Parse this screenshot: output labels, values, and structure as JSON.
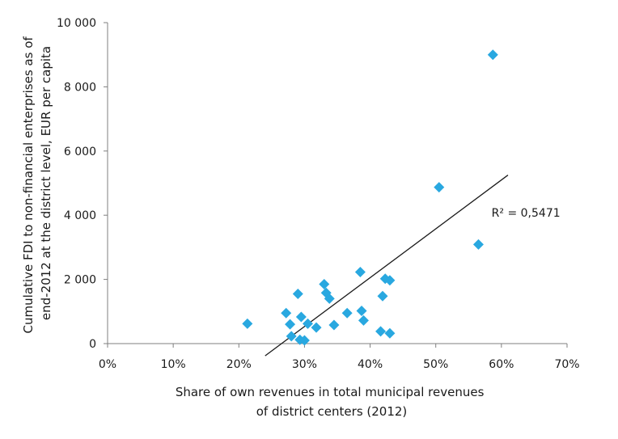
{
  "chart_data": {
    "type": "scatter",
    "xlabel_lines": [
      "Share of own revenues in total municipal revenues",
      "of district centers (2012)"
    ],
    "ylabel_lines": [
      "Cumulative FDI to non-financial enterprises as of",
      "end-2012 at the district level, EUR per capita"
    ],
    "xlim": [
      0,
      70
    ],
    "ylim": [
      0,
      10000
    ],
    "x_ticks": [
      0,
      10,
      20,
      30,
      40,
      50,
      60,
      70
    ],
    "x_tick_labels": [
      "0%",
      "10%",
      "20%",
      "30%",
      "40%",
      "50%",
      "60%",
      "70%"
    ],
    "y_ticks": [
      0,
      2000,
      4000,
      6000,
      8000,
      10000
    ],
    "y_tick_labels": [
      "0",
      "2 000",
      "4 000",
      "6 000",
      "8 000",
      "10 000"
    ],
    "grid": false,
    "marker": "diamond",
    "marker_color": "#29a8e0",
    "trendline_color": "#1a1a1a",
    "points": [
      {
        "x": 21.3,
        "y": 620
      },
      {
        "x": 27.2,
        "y": 950
      },
      {
        "x": 27.8,
        "y": 600
      },
      {
        "x": 28.0,
        "y": 230
      },
      {
        "x": 29.0,
        "y": 1550
      },
      {
        "x": 29.3,
        "y": 120
      },
      {
        "x": 29.5,
        "y": 830
      },
      {
        "x": 30.0,
        "y": 100
      },
      {
        "x": 30.5,
        "y": 620
      },
      {
        "x": 31.8,
        "y": 500
      },
      {
        "x": 33.0,
        "y": 1850
      },
      {
        "x": 33.3,
        "y": 1580
      },
      {
        "x": 33.8,
        "y": 1400
      },
      {
        "x": 34.5,
        "y": 580
      },
      {
        "x": 36.5,
        "y": 950
      },
      {
        "x": 38.5,
        "y": 2230
      },
      {
        "x": 38.7,
        "y": 1020
      },
      {
        "x": 39.0,
        "y": 720
      },
      {
        "x": 41.6,
        "y": 380
      },
      {
        "x": 41.9,
        "y": 1480
      },
      {
        "x": 42.3,
        "y": 2020
      },
      {
        "x": 43.0,
        "y": 1970
      },
      {
        "x": 43.0,
        "y": 320
      },
      {
        "x": 50.5,
        "y": 4870
      },
      {
        "x": 56.5,
        "y": 3090
      },
      {
        "x": 58.7,
        "y": 9000
      }
    ],
    "trendline": {
      "x": [
        24.0,
        61.0
      ],
      "y": [
        -380,
        5250
      ]
    },
    "annotation": "R² = 0,5471",
    "annotation_anchor": {
      "x": 58.5,
      "y": 3950
    }
  }
}
